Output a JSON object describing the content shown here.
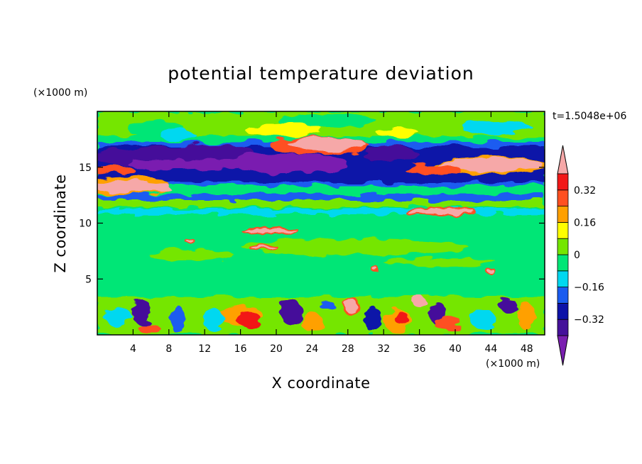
{
  "chart_data": {
    "type": "heatmap",
    "title": "potential temperature deviation",
    "xlabel": "X coordinate",
    "ylabel": "Z coordinate",
    "x_unit": "(×1000 m)",
    "y_unit": "(×1000 m)",
    "time_label": "t=1.5048e+06",
    "xlim": [
      0,
      50
    ],
    "ylim": [
      0,
      20
    ],
    "x_ticks": [
      4,
      8,
      12,
      16,
      20,
      24,
      28,
      32,
      36,
      40,
      44,
      48
    ],
    "y_ticks": [
      5,
      10,
      15
    ],
    "colorbar": {
      "levels": [
        -0.4,
        -0.32,
        -0.24,
        -0.16,
        -0.08,
        0,
        0.08,
        0.16,
        0.24,
        0.32,
        0.4
      ],
      "tick_values": [
        -0.32,
        -0.16,
        0,
        0.16,
        0.32
      ],
      "tick_labels": [
        "−0.32",
        "−0.16",
        "0",
        "0.16",
        "0.32"
      ],
      "colors": [
        "#7a1fb0",
        "#45119a",
        "#0d12a8",
        "#1a5cf0",
        "#00d8f0",
        "#00e676",
        "#74e600",
        "#ffff00",
        "#ffa000",
        "#ff5020",
        "#f21818",
        "#f6a8a8"
      ],
      "extend": "both"
    },
    "features": [
      {
        "x": [
          0,
          50
        ],
        "z": [
          13.0,
          16.5
        ],
        "value": -0.36
      },
      {
        "x": [
          0,
          50
        ],
        "z": [
          12.3,
          13.5
        ],
        "value": -0.28
      },
      {
        "x": [
          0,
          15
        ],
        "z": [
          12.6,
          14.8
        ],
        "value": 0.42
      },
      {
        "x": [
          32,
          50
        ],
        "z": [
          14.5,
          15.8
        ],
        "value": 0.42
      },
      {
        "x": [
          21,
          31
        ],
        "z": [
          16.3,
          18.3
        ],
        "value": 0.42
      },
      {
        "x": [
          31,
          50
        ],
        "z": [
          16.5,
          19.0
        ],
        "value": 0.1
      },
      {
        "x": [
          0,
          50
        ],
        "z": [
          0.2,
          3.5
        ],
        "value": 0.0
      }
    ]
  }
}
